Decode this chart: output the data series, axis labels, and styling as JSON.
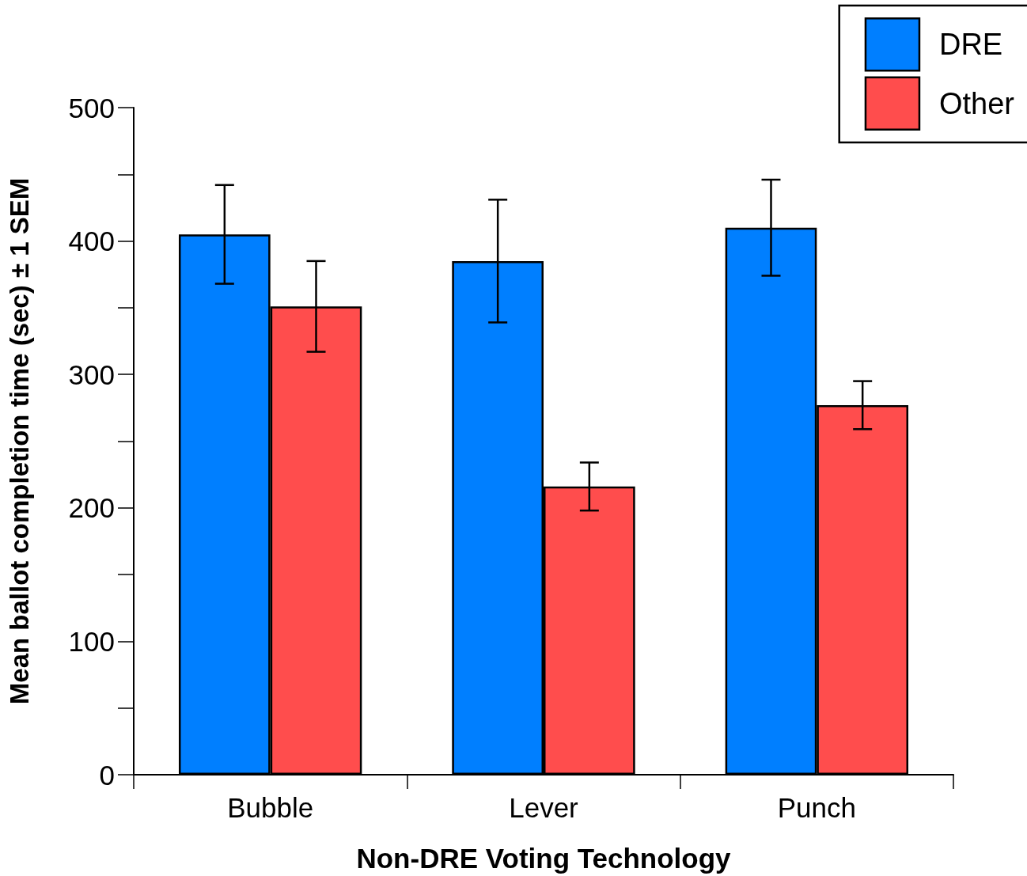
{
  "chart_data": {
    "type": "bar",
    "xlabel": "Non-DRE Voting Technology",
    "ylabel": "Mean ballot completion time (sec) ± 1 SEM",
    "categories": [
      "Bubble",
      "Lever",
      "Punch"
    ],
    "series": [
      {
        "name": "DRE",
        "color": "#007fff",
        "values": [
          405,
          385,
          410
        ],
        "errors": [
          37,
          46,
          36
        ]
      },
      {
        "name": "Other",
        "color": "#ff4d4d",
        "values": [
          351,
          216,
          277
        ],
        "errors": [
          34,
          18,
          18
        ]
      }
    ],
    "ylim": [
      0,
      500
    ],
    "yticks": [
      0,
      100,
      200,
      300,
      400,
      500
    ],
    "grid": false,
    "legend": "top right"
  }
}
